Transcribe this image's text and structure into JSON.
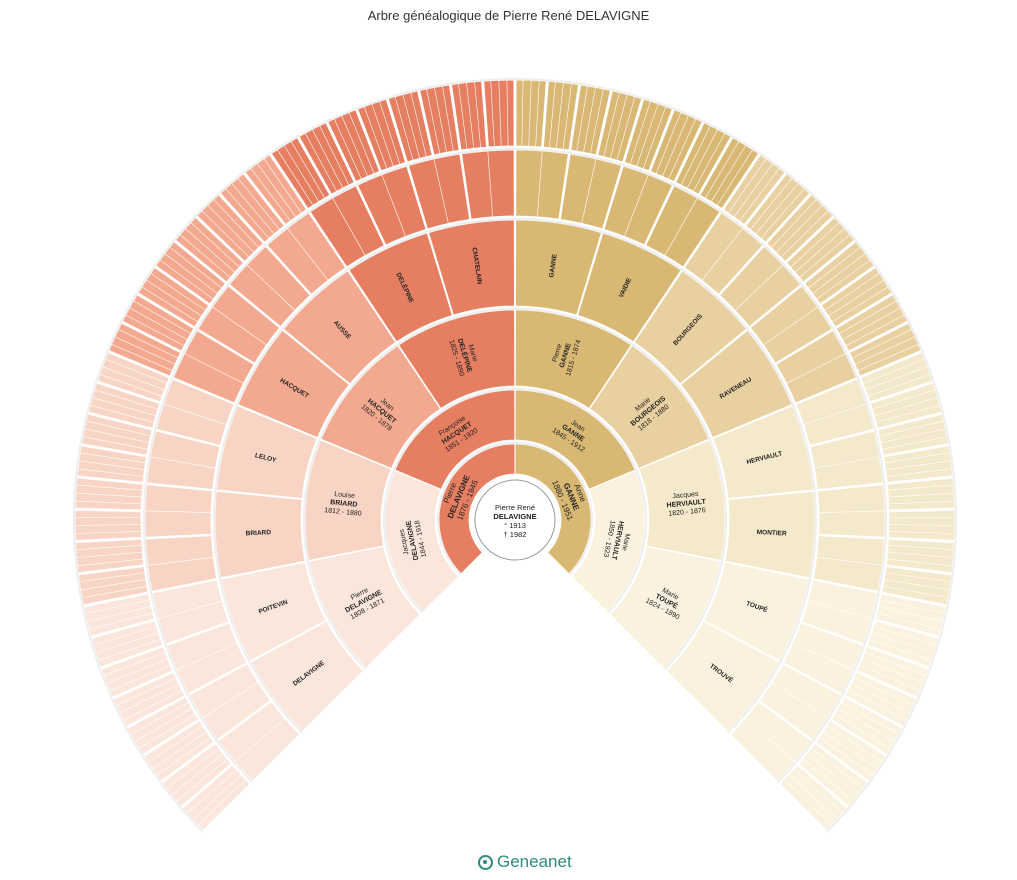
{
  "title": "Arbre généalogique de Pierre René DELAVIGNE",
  "root": {
    "given": "Pierre René",
    "surname": "DELAVIGNE",
    "birth": "° 1913",
    "death": "† 1982"
  },
  "gen1": [
    {
      "given": "Pierre",
      "surname": "DELAVIGNE",
      "dates": "1876 - 1945"
    },
    {
      "given": "Anne",
      "surname": "GANNE",
      "dates": "1880 - 1951"
    }
  ],
  "gen2": [
    {
      "given": "Jacques",
      "surname": "DELAVIGNE",
      "dates": "1844 - 1918"
    },
    {
      "given": "Françoise",
      "surname": "HACQUET",
      "dates": "1851 - 1920"
    },
    {
      "given": "Jean",
      "surname": "GANNE",
      "dates": "1845 - 1912"
    },
    {
      "given": "Marie",
      "surname": "HERVIAULT",
      "dates": "1850 - 1923"
    }
  ],
  "gen3": [
    {
      "given": "Pierre",
      "surname": "DELAVIGNE",
      "dates": "1808 - 1871"
    },
    {
      "given": "Louise",
      "surname": "BRIARD",
      "dates": "1812 - 1880"
    },
    {
      "given": "Jean",
      "surname": "HACQUET",
      "dates": "1820 - 1878"
    },
    {
      "given": "Marie",
      "surname": "DELÉPINE",
      "dates": "1825 - 1890"
    },
    {
      "given": "Pierre",
      "surname": "GANNE",
      "dates": "1815 - 1874"
    },
    {
      "given": "Marie",
      "surname": "BOURGEOIS",
      "dates": "1818 - 1880"
    },
    {
      "given": "Jacques",
      "surname": "HERVIAULT",
      "dates": "1820 - 1876"
    },
    {
      "given": "Marie",
      "surname": "TOUPÉ",
      "dates": "1824 - 1890"
    }
  ],
  "gen4_surnames": [
    "DELAVIGNE",
    "POITEVIN",
    "BRIARD",
    "LELOY",
    "HACQUET",
    "AUSSE",
    "DELÉPINE",
    "CHATELAIN",
    "GANNE",
    "VAIDIE",
    "BOURGEOIS",
    "RAVENEAU",
    "HERVIAULT",
    "MONTIER",
    "TOUPÉ",
    "TROUVÉ"
  ],
  "brand": "Geneanet",
  "colors": {
    "paternal_dark": "#e67f62",
    "paternal_mid": "#f2a98f",
    "paternal_light": "#f8d4c4",
    "maternal_dark": "#d9b874",
    "maternal_mid": "#e9d0a0",
    "maternal_light": "#f5e9cc",
    "brand": "#2f8a7e"
  }
}
